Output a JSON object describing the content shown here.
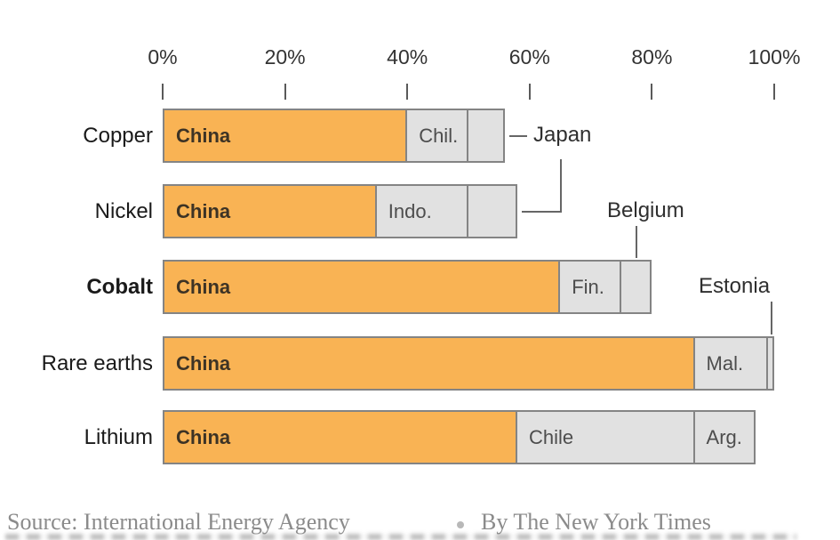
{
  "chart_data": {
    "type": "bar",
    "orientation": "horizontal-stacked",
    "unit": "percent",
    "xlim": [
      0,
      100
    ],
    "grid": false,
    "legend": "none",
    "x_ticks": [
      {
        "value": 0,
        "label": "0%"
      },
      {
        "value": 20,
        "label": "20%"
      },
      {
        "value": 40,
        "label": "40%"
      },
      {
        "value": 60,
        "label": "60%"
      },
      {
        "value": 80,
        "label": "80%"
      },
      {
        "value": 100,
        "label": "100%"
      }
    ],
    "colors": {
      "china_fill": "#F9B354",
      "other_fill": "#E1E1E1",
      "segment_border": "#848484",
      "connector": "#666666"
    },
    "rows": [
      {
        "category": "Copper",
        "bold": false,
        "segments": [
          {
            "label": "China",
            "value": 40,
            "type": "china"
          },
          {
            "label": "Chil.",
            "value": 10,
            "type": "other"
          },
          {
            "label": "",
            "value": 6,
            "type": "other",
            "annotation": "japan"
          }
        ]
      },
      {
        "category": "Nickel",
        "bold": false,
        "segments": [
          {
            "label": "China",
            "value": 35,
            "type": "china"
          },
          {
            "label": "Indo.",
            "value": 15,
            "type": "other"
          },
          {
            "label": "",
            "value": 8,
            "type": "other",
            "annotation": "japan"
          }
        ]
      },
      {
        "category": "Cobalt",
        "bold": true,
        "segments": [
          {
            "label": "China",
            "value": 65,
            "type": "china"
          },
          {
            "label": "Fin.",
            "value": 10,
            "type": "other"
          },
          {
            "label": "",
            "value": 5,
            "type": "other",
            "annotation": "belgium"
          }
        ]
      },
      {
        "category": "Rare earths",
        "bold": false,
        "segments": [
          {
            "label": "China",
            "value": 87,
            "type": "china"
          },
          {
            "label": "Mal.",
            "value": 12,
            "type": "other"
          },
          {
            "label": "",
            "value": 1,
            "type": "other",
            "annotation": "estonia"
          }
        ]
      },
      {
        "category": "Lithium",
        "bold": false,
        "segments": [
          {
            "label": "China",
            "value": 58,
            "type": "china"
          },
          {
            "label": "Chile",
            "value": 29,
            "type": "other"
          },
          {
            "label": "Arg.",
            "value": 10,
            "type": "other"
          }
        ]
      }
    ],
    "annotations": [
      {
        "id": "japan",
        "label": "Japan"
      },
      {
        "id": "belgium",
        "label": "Belgium"
      },
      {
        "id": "estonia",
        "label": "Estonia"
      }
    ]
  },
  "footer": {
    "source": "Source: International Energy Agency",
    "byline": "By The New York Times"
  }
}
